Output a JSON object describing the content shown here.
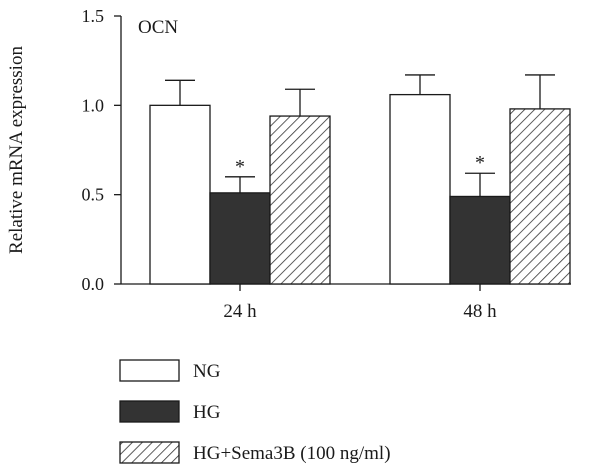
{
  "chart_data": {
    "type": "bar",
    "title": "OCN",
    "ylabel": "Relative mRNA expression",
    "xlabel": "",
    "categories": [
      "24 h",
      "48 h"
    ],
    "ylim": [
      0,
      1.5
    ],
    "yticks": [
      "0.0",
      "0.5",
      "1.0",
      "1.5"
    ],
    "grid": false,
    "legend_position": "bottom-left",
    "series": [
      {
        "name": "NG",
        "values": [
          1.0,
          1.06
        ],
        "errors": [
          0.14,
          0.11
        ],
        "annotations": [
          "",
          ""
        ],
        "fill": "#ffffff"
      },
      {
        "name": "HG",
        "values": [
          0.51,
          0.49
        ],
        "errors": [
          0.09,
          0.13
        ],
        "annotations": [
          "*",
          "*"
        ],
        "fill": "#333333"
      },
      {
        "name": "HG+Sema3B (100 ng/ml)",
        "values": [
          0.94,
          0.98
        ],
        "errors": [
          0.15,
          0.19
        ],
        "annotations": [
          "",
          ""
        ],
        "fill": "hatch"
      }
    ]
  }
}
